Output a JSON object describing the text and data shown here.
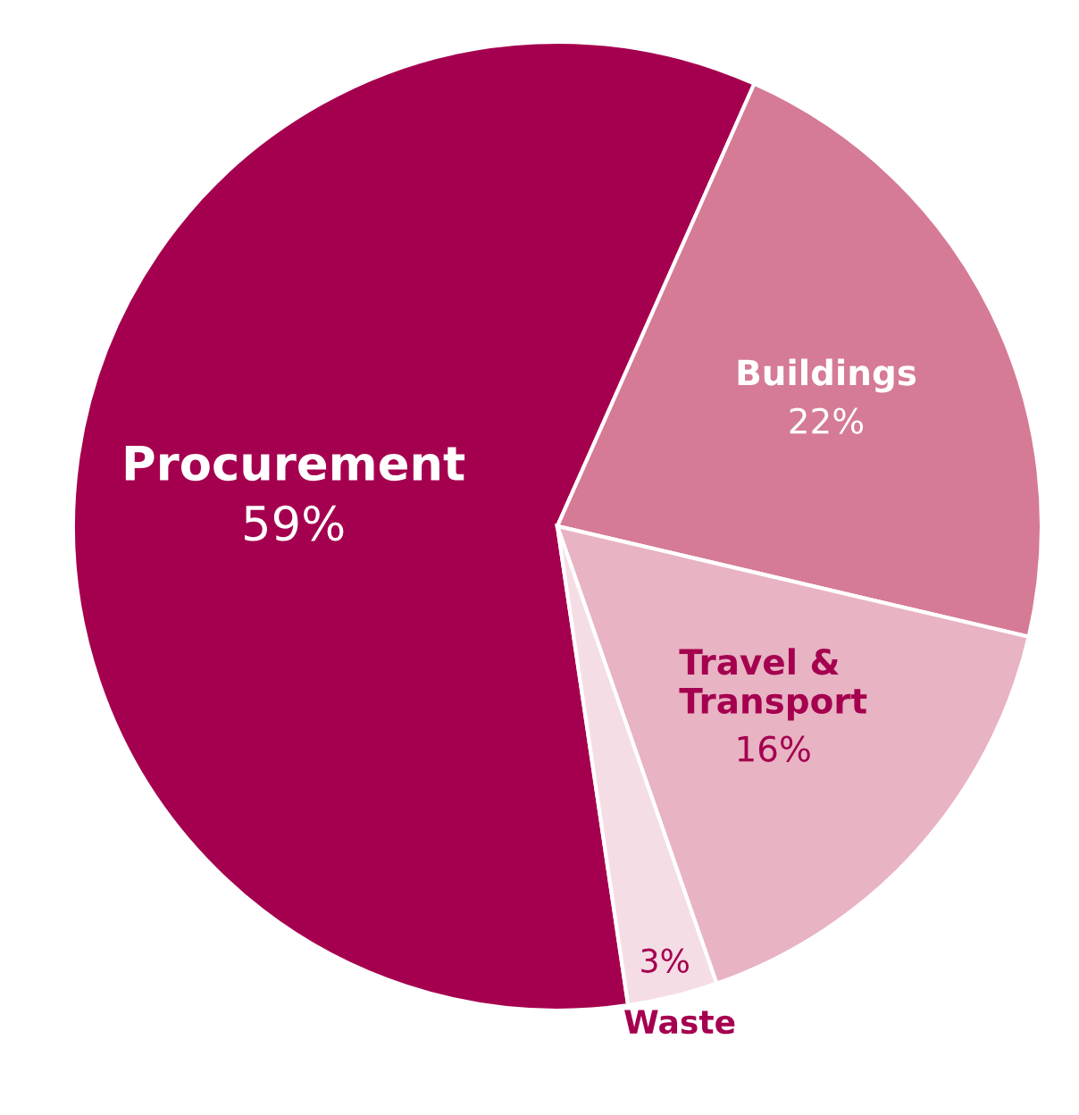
{
  "chart_data": {
    "type": "pie",
    "categories": [
      "Procurement",
      "Buildings",
      "Travel &\nTransport",
      "Waste"
    ],
    "values": [
      59,
      22,
      16,
      3
    ],
    "value_labels": [
      "59%",
      "22%",
      "16%",
      "3%"
    ],
    "colors": [
      "#a5004f",
      "#d57b95",
      "#e8b3c3",
      "#f5dde6"
    ]
  }
}
